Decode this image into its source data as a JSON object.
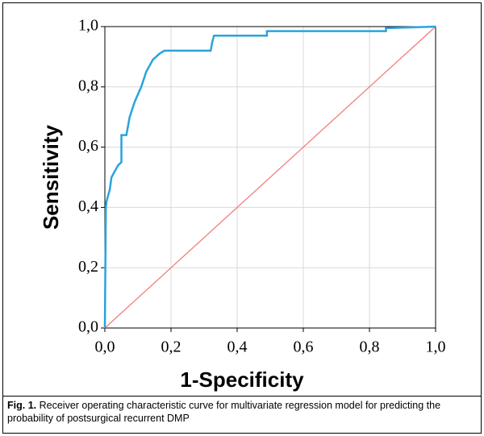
{
  "chart_data": {
    "type": "line",
    "xlabel": "1-Specificity",
    "ylabel": "Sensitivity",
    "xlim": [
      0,
      1
    ],
    "ylim": [
      0,
      1
    ],
    "grid": true,
    "xticks": [
      {
        "value": 0,
        "label": "0,0"
      },
      {
        "value": 0.2,
        "label": "0,2"
      },
      {
        "value": 0.4,
        "label": "0,4"
      },
      {
        "value": 0.6,
        "label": "0,6"
      },
      {
        "value": 0.8,
        "label": "0,8"
      },
      {
        "value": 1,
        "label": "1,0"
      }
    ],
    "yticks": [
      {
        "value": 0,
        "label": "0,0"
      },
      {
        "value": 0.2,
        "label": "0,2"
      },
      {
        "value": 0.4,
        "label": "0,4"
      },
      {
        "value": 0.6,
        "label": "0,6"
      },
      {
        "value": 0.8,
        "label": "0,8"
      },
      {
        "value": 1,
        "label": "1,0"
      }
    ],
    "series": [
      {
        "color": "#2aa3dd",
        "x": [
          0,
          0.003,
          0.005,
          0.01,
          0.015,
          0.02,
          0.03,
          0.04,
          0.05,
          0.05,
          0.065,
          0.075,
          0.09,
          0.11,
          0.125,
          0.145,
          0.165,
          0.18,
          0.32,
          0.325,
          0.33,
          0.49,
          0.49,
          0.85,
          0.85,
          1
        ],
        "y": [
          0,
          0.4,
          0.42,
          0.44,
          0.46,
          0.5,
          0.52,
          0.54,
          0.55,
          0.64,
          0.64,
          0.7,
          0.75,
          0.8,
          0.85,
          0.89,
          0.91,
          0.92,
          0.92,
          0.95,
          0.97,
          0.97,
          0.985,
          0.985,
          0.995,
          1
        ]
      },
      {
        "color": "#f07f7f",
        "x": [
          0,
          1
        ],
        "y": [
          0,
          1
        ]
      }
    ]
  },
  "caption_label": "Fig. 1.",
  "caption": "Receiver operating characteristic curve for multivariate regression model for predicting the probability of postsurgical recurrent DMP"
}
